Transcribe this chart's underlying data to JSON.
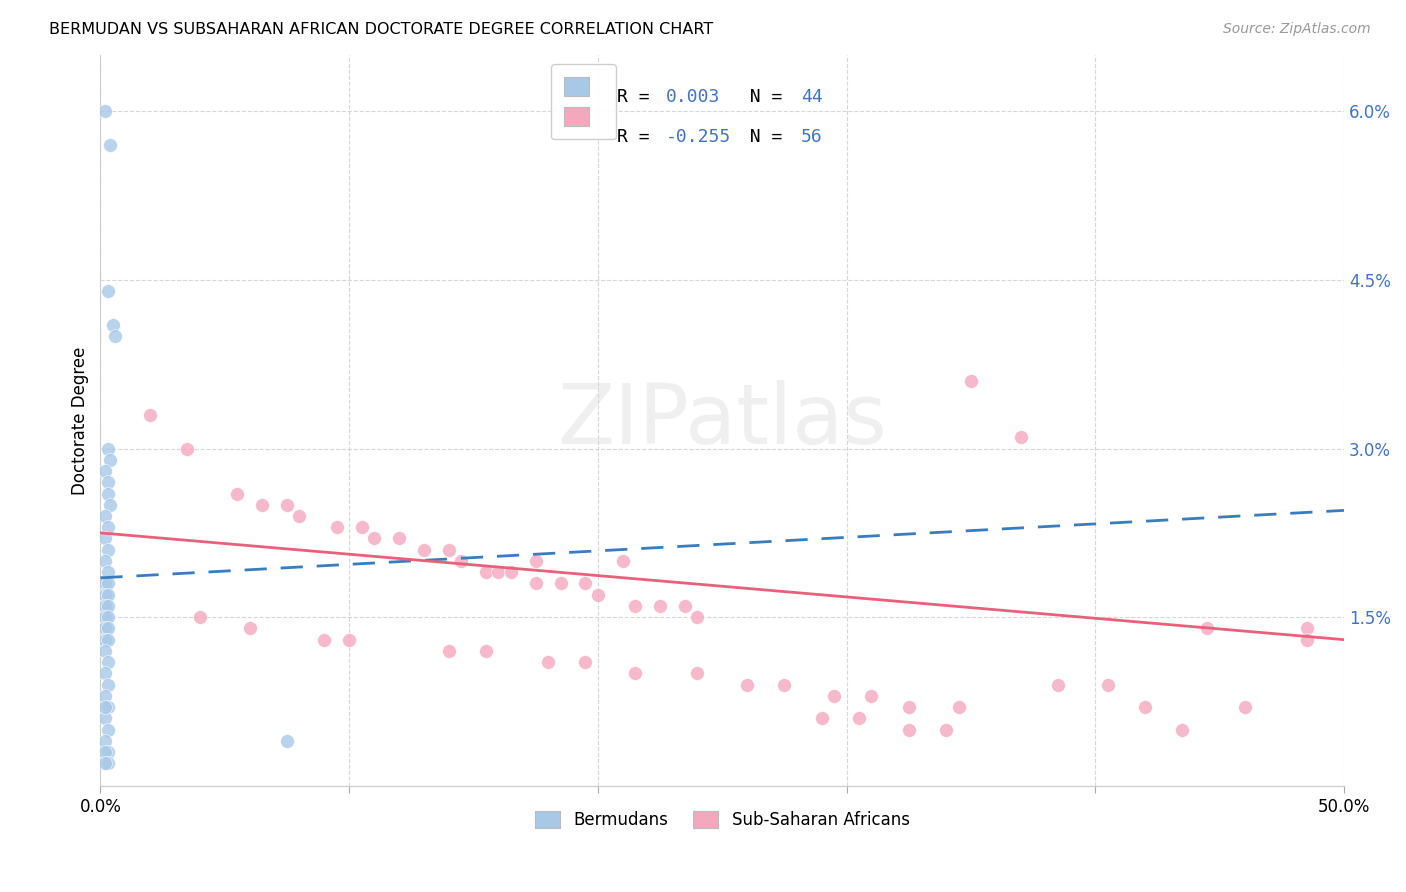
{
  "title": "BERMUDAN VS SUBSAHARAN AFRICAN DOCTORATE DEGREE CORRELATION CHART",
  "source": "Source: ZipAtlas.com",
  "ylabel": "Doctorate Degree",
  "xlim": [
    0.0,
    0.5
  ],
  "ylim": [
    0.0,
    0.065
  ],
  "blue_color": "#A8C8E8",
  "pink_color": "#F4A8BE",
  "blue_line_color": "#3A7DBF",
  "pink_line_color": "#E8607A",
  "text_color": "#4472C4",
  "grid_color": "#CCCCCC",
  "blue_scatter_x": [
    0.002,
    0.004,
    0.003,
    0.005,
    0.006,
    0.003,
    0.004,
    0.002,
    0.003,
    0.003,
    0.004,
    0.002,
    0.003,
    0.002,
    0.003,
    0.002,
    0.003,
    0.002,
    0.003,
    0.002,
    0.003,
    0.002,
    0.003,
    0.002,
    0.003,
    0.002,
    0.003,
    0.002,
    0.003,
    0.002,
    0.003,
    0.002,
    0.003,
    0.002,
    0.003,
    0.002,
    0.003,
    0.002,
    0.075,
    0.002,
    0.003,
    0.002,
    0.003,
    0.002
  ],
  "blue_scatter_y": [
    0.06,
    0.057,
    0.044,
    0.041,
    0.04,
    0.03,
    0.029,
    0.028,
    0.027,
    0.026,
    0.025,
    0.024,
    0.023,
    0.022,
    0.021,
    0.02,
    0.019,
    0.018,
    0.018,
    0.017,
    0.017,
    0.016,
    0.016,
    0.015,
    0.015,
    0.014,
    0.014,
    0.013,
    0.013,
    0.012,
    0.011,
    0.01,
    0.009,
    0.008,
    0.007,
    0.006,
    0.005,
    0.004,
    0.004,
    0.007,
    0.003,
    0.003,
    0.002,
    0.002
  ],
  "pink_scatter_x": [
    0.02,
    0.035,
    0.055,
    0.065,
    0.075,
    0.08,
    0.095,
    0.105,
    0.11,
    0.12,
    0.13,
    0.14,
    0.145,
    0.155,
    0.16,
    0.165,
    0.175,
    0.185,
    0.195,
    0.2,
    0.215,
    0.225,
    0.235,
    0.24,
    0.04,
    0.06,
    0.09,
    0.1,
    0.14,
    0.155,
    0.18,
    0.195,
    0.215,
    0.24,
    0.26,
    0.275,
    0.295,
    0.31,
    0.325,
    0.345,
    0.35,
    0.37,
    0.42,
    0.445,
    0.46,
    0.485,
    0.385,
    0.405,
    0.175,
    0.21,
    0.29,
    0.305,
    0.325,
    0.34,
    0.435,
    0.485
  ],
  "pink_scatter_y": [
    0.033,
    0.03,
    0.026,
    0.025,
    0.025,
    0.024,
    0.023,
    0.023,
    0.022,
    0.022,
    0.021,
    0.021,
    0.02,
    0.019,
    0.019,
    0.019,
    0.018,
    0.018,
    0.018,
    0.017,
    0.016,
    0.016,
    0.016,
    0.015,
    0.015,
    0.014,
    0.013,
    0.013,
    0.012,
    0.012,
    0.011,
    0.011,
    0.01,
    0.01,
    0.009,
    0.009,
    0.008,
    0.008,
    0.007,
    0.007,
    0.036,
    0.031,
    0.007,
    0.014,
    0.007,
    0.014,
    0.009,
    0.009,
    0.02,
    0.02,
    0.006,
    0.006,
    0.005,
    0.005,
    0.005,
    0.013
  ],
  "blue_line_x": [
    0.0,
    0.5
  ],
  "blue_line_y": [
    0.0185,
    0.0245
  ],
  "pink_line_x": [
    0.0,
    0.5
  ],
  "pink_line_y": [
    0.0225,
    0.013
  ]
}
